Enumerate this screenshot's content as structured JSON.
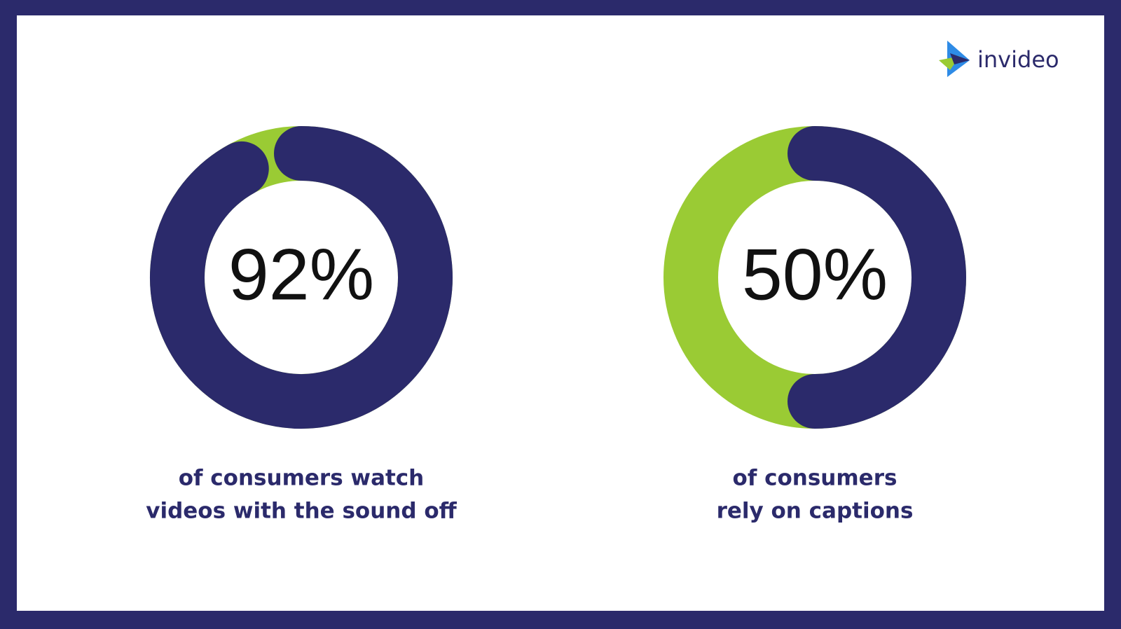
{
  "logo": "invideo",
  "chart_data": [
    {
      "type": "donut",
      "values": [
        92
      ],
      "value_labels": [
        "92%"
      ],
      "color": "#2b2a6b",
      "track_color": "#9acb34",
      "caption": [
        "of consumers watch",
        "videos with the sound off"
      ]
    },
    {
      "type": "donut",
      "values": [
        50
      ],
      "value_labels": [
        "50%"
      ],
      "color": "#2b2a6b",
      "track_color": "#9acb34",
      "caption": [
        "of consumers",
        "rely on captions"
      ]
    }
  ]
}
